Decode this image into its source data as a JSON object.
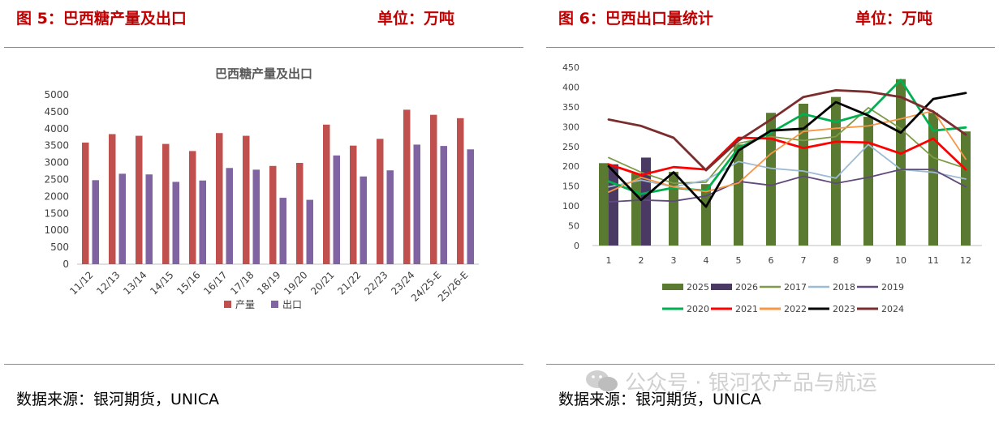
{
  "left": {
    "figure_title": "图 5：巴西糖产量及出口",
    "unit": "单位：万吨",
    "source": "数据来源：银河期货，UNICA"
  },
  "right": {
    "figure_title": "图 6：巴西出口量统计",
    "unit": "单位：万吨",
    "source": "数据来源：银河期货，UNICA"
  },
  "watermark": {
    "text": "公众号 · 银河农产品与航运",
    "icon": "wechat-logo-icon"
  },
  "chart_data": [
    {
      "type": "bar",
      "title": "巴西糖产量及出口",
      "categories": [
        "11/12",
        "12/13",
        "13/14",
        "14/15",
        "15/16",
        "16/17",
        "17/18",
        "18/19",
        "19/20",
        "20/21",
        "21/22",
        "22/23",
        "23/24",
        "24/25-E",
        "25/26-E"
      ],
      "series": [
        {
          "name": "产量",
          "color": "#c0504d",
          "values": [
            3590,
            3840,
            3790,
            3550,
            3340,
            3870,
            3790,
            2900,
            2990,
            4120,
            3500,
            3700,
            4560,
            4410,
            4310
          ]
        },
        {
          "name": "出口",
          "color": "#8064a2",
          "values": [
            2480,
            2670,
            2650,
            2430,
            2470,
            2840,
            2790,
            1960,
            1900,
            3210,
            2590,
            2770,
            3530,
            3490,
            3390
          ]
        }
      ],
      "yticks": [
        "5000",
        "4500",
        "4000",
        "3500",
        "3000",
        "2500",
        "2000",
        "1500",
        "1000",
        "500",
        "0"
      ],
      "ylim": [
        0,
        5000
      ],
      "grid": false,
      "legend": "bottom"
    },
    {
      "type": "bar+line",
      "categories": [
        "1",
        "2",
        "3",
        "4",
        "5",
        "6",
        "7",
        "8",
        "9",
        "10",
        "11",
        "12"
      ],
      "bars": [
        {
          "name": "2025",
          "color": "#5b7a31",
          "values": [
            208,
            182,
            186,
            155,
            255,
            335,
            358,
            375,
            325,
            420,
            335,
            288
          ]
        },
        {
          "name": "2026",
          "color": "#4a3a63",
          "values": [
            205,
            222,
            null,
            null,
            null,
            null,
            null,
            null,
            null,
            null,
            null,
            null
          ]
        }
      ],
      "lines": [
        {
          "name": "2017",
          "color": "#7f9a48",
          "values": [
            222,
            185,
            157,
            160,
            258,
            275,
            265,
            275,
            348,
            295,
            222,
            195
          ]
        },
        {
          "name": "2018",
          "color": "#9dbcd4",
          "values": [
            148,
            165,
            148,
            165,
            212,
            195,
            188,
            170,
            255,
            192,
            185,
            168
          ]
        },
        {
          "name": "2019",
          "color": "#604a7b",
          "values": [
            110,
            115,
            112,
            125,
            162,
            152,
            175,
            157,
            172,
            192,
            192,
            148
          ]
        },
        {
          "name": "2020",
          "color": "#00b050",
          "values": [
            162,
            130,
            146,
            138,
            246,
            285,
            332,
            312,
            335,
            418,
            290,
            298
          ]
        },
        {
          "name": "2021",
          "color": "#ff0000",
          "values": [
            205,
            178,
            198,
            192,
            272,
            270,
            246,
            262,
            260,
            232,
            270,
            192
          ]
        },
        {
          "name": "2022",
          "color": "#f79646",
          "values": [
            135,
            172,
            148,
            136,
            158,
            232,
            288,
            296,
            302,
            320,
            340,
            218
          ]
        },
        {
          "name": "2023",
          "color": "#000000",
          "values": [
            200,
            115,
            185,
            98,
            240,
            290,
            295,
            362,
            328,
            285,
            370,
            385
          ]
        },
        {
          "name": "2024",
          "color": "#7b2c2c",
          "values": [
            318,
            302,
            272,
            190,
            265,
            318,
            375,
            392,
            388,
            375,
            338,
            280
          ]
        }
      ],
      "yticks": [
        "450",
        "400",
        "350",
        "300",
        "250",
        "200",
        "150",
        "100",
        "50",
        "0"
      ],
      "ylim": [
        0,
        450
      ],
      "grid": false,
      "legend": "bottom"
    }
  ]
}
